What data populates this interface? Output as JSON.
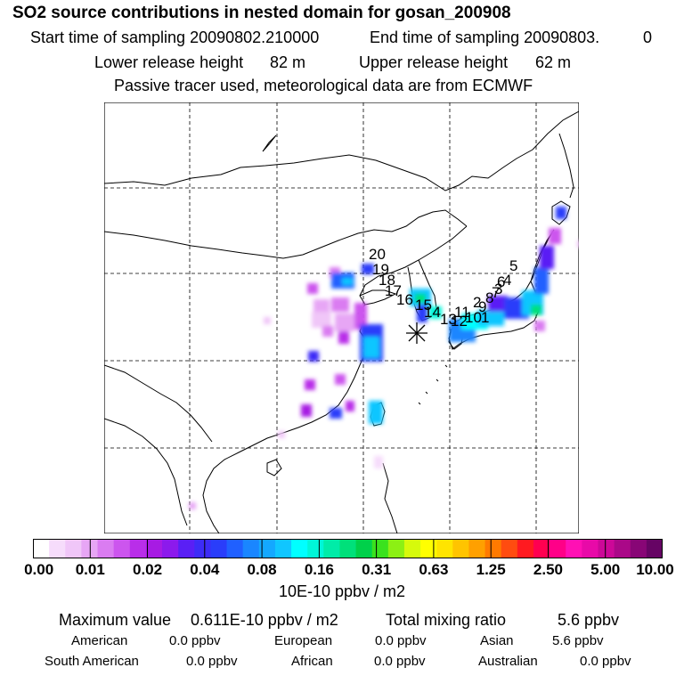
{
  "header": {
    "title": "SO2 source contributions in nested domain for gosan_200908",
    "start_label": "Start time of sampling 20090802.210000",
    "end_label": "End time of sampling 20090803.",
    "end_value": "0",
    "lower_label": "Lower release height",
    "lower_value": "82 m",
    "upper_label": "Upper release height",
    "upper_value": "62 m",
    "tracer_note": "Passive tracer used, meteorological data are from ECMWF"
  },
  "map": {
    "receptor_marker": "asterisk-icon",
    "trajectory_labels": [
      "1",
      "2",
      "3",
      "4",
      "5",
      "6",
      "7",
      "8",
      "9",
      "10",
      "11",
      "12",
      "13",
      "14",
      "15",
      "16",
      "17",
      "18",
      "19",
      "20"
    ],
    "colors": {
      "land_outline": "#000000",
      "grid": "#000000",
      "receptor": "#000000"
    }
  },
  "colorbar": {
    "tick_labels": [
      "0.00",
      "0.01",
      "0.02",
      "0.04",
      "0.08",
      "0.16",
      "0.31",
      "0.63",
      "1.25",
      "2.50",
      "5.00",
      "10.00"
    ],
    "colors": [
      "#ffffff",
      "#f6dcfb",
      "#f0c6f8",
      "#e7a6f5",
      "#da7cf1",
      "#cc55ee",
      "#b92ee9",
      "#a71be3",
      "#8c1aec",
      "#5a1ff5",
      "#3d2cf7",
      "#2a3dfa",
      "#2060ff",
      "#1a86ff",
      "#14a8ff",
      "#10c6ff",
      "#00ffff",
      "#00f6d8",
      "#00eca8",
      "#00e07a",
      "#00d04a",
      "#3ae21e",
      "#8cf014",
      "#d6fa0c",
      "#ffff00",
      "#ffe400",
      "#ffc400",
      "#ffa000",
      "#ff7a00",
      "#ff4c10",
      "#ff1a20",
      "#ff0050",
      "#ff0088",
      "#ff10b4",
      "#e80aa8",
      "#cc0898",
      "#aa0888",
      "#880676",
      "#660464"
    ],
    "unit": "10E-10 ppbv / m2"
  },
  "stats": {
    "max_label": "Maximum value",
    "max_value": "0.611E-10 ppbv / m2",
    "total_label": "Total mixing ratio",
    "total_value": "5.6 ppbv",
    "regions": [
      {
        "name": "American",
        "value": "0.0 ppbv"
      },
      {
        "name": "European",
        "value": "0.0 ppbv"
      },
      {
        "name": "Asian",
        "value": "5.6 ppbv"
      },
      {
        "name": "South American",
        "value": "0.0 ppbv"
      },
      {
        "name": "African",
        "value": "0.0 ppbv"
      },
      {
        "name": "Australian",
        "value": "0.0 ppbv"
      }
    ]
  }
}
